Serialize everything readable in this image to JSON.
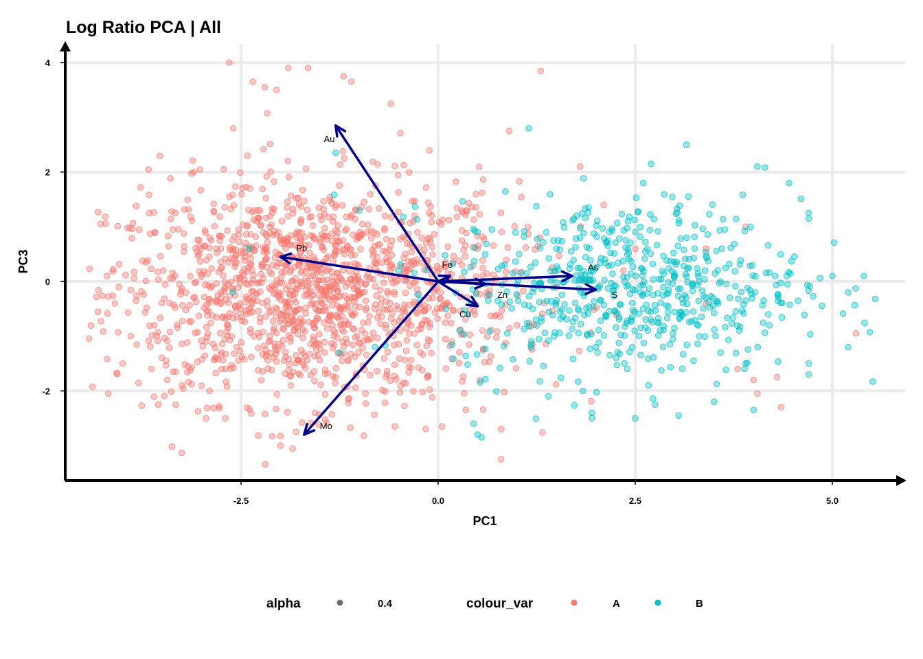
{
  "chart_data": {
    "type": "scatter",
    "title": "Log Ratio PCA | All",
    "xlabel": "PC1",
    "ylabel": "PC3",
    "xlim": [
      -4.45,
      5.85
    ],
    "ylim": [
      -3.6,
      4.3
    ],
    "xticks": [
      -2.5,
      0.0,
      2.5,
      5.0
    ],
    "xtick_labels": [
      "-2.5",
      "0.0",
      "2.5",
      "5.0"
    ],
    "yticks": [
      -2,
      0,
      2,
      4
    ],
    "ytick_labels": [
      "-2",
      "0",
      "2",
      "4"
    ],
    "grid": true,
    "point_alpha": 0.4,
    "series": [
      {
        "name": "A",
        "color": "#F8766D",
        "approx_count": 1500,
        "center": [
          -1.6,
          -0.2
        ],
        "spread": [
          1.3,
          1.0
        ],
        "sample_points": [
          [
            -4.0,
            -1.5
          ],
          [
            -4.2,
            0.1
          ],
          [
            -3.1,
            2.0
          ],
          [
            -2.6,
            2.8
          ],
          [
            -2.65,
            4.0
          ],
          [
            -1.9,
            3.9
          ],
          [
            -1.65,
            3.9
          ],
          [
            -1.2,
            3.75
          ],
          [
            -1.1,
            3.65
          ],
          [
            -0.6,
            3.25
          ],
          [
            -2.35,
            3.65
          ],
          [
            -2.2,
            3.55
          ],
          [
            -2.05,
            3.5
          ],
          [
            1.3,
            3.85
          ],
          [
            0.9,
            2.75
          ],
          [
            -3.55,
            -2.25
          ],
          [
            -2.7,
            -2.5
          ],
          [
            -2.0,
            -3.0
          ],
          [
            -1.8,
            -2.75
          ],
          [
            -0.55,
            -2.65
          ],
          [
            0.05,
            -2.65
          ],
          [
            0.35,
            -2.35
          ],
          [
            0.8,
            -2.7
          ],
          [
            0.8,
            -3.25
          ],
          [
            1.85,
            0.0
          ],
          [
            2.35,
            0.2
          ],
          [
            3.4,
            -0.4
          ],
          [
            4.3,
            -1.75
          ],
          [
            4.05,
            -2.05
          ],
          [
            4.35,
            -2.3
          ],
          [
            5.3,
            -0.95
          ],
          [
            3.8,
            -1.6
          ],
          [
            4.0,
            -1.8
          ],
          [
            3.9,
            1.0
          ],
          [
            3.4,
            0.6
          ],
          [
            1.8,
            2.1
          ],
          [
            2.1,
            1.4
          ],
          [
            1.0,
            -0.8
          ],
          [
            -4.1,
            -0.4
          ],
          [
            -3.9,
            -1.0
          ],
          [
            -3.45,
            -1.45
          ],
          [
            -3.6,
            -0.8
          ],
          [
            -3.25,
            -1.9
          ],
          [
            -2.9,
            -2.0
          ],
          [
            -1.4,
            -0.7
          ],
          [
            -0.9,
            0.9
          ],
          [
            -0.3,
            1.2
          ],
          [
            0.5,
            0.6
          ],
          [
            -2.4,
            -0.5
          ],
          [
            -2.1,
            0.3
          ]
        ]
      },
      {
        "name": "B",
        "color": "#00BFC4",
        "approx_count": 600,
        "center": [
          2.4,
          -0.1
        ],
        "spread": [
          1.1,
          0.8
        ],
        "sample_points": [
          [
            3.15,
            2.5
          ],
          [
            4.05,
            2.1
          ],
          [
            4.45,
            1.8
          ],
          [
            4.7,
            1.25
          ],
          [
            4.7,
            1.15
          ],
          [
            2.7,
            2.15
          ],
          [
            2.6,
            1.8
          ],
          [
            5.0,
            0.1
          ],
          [
            5.4,
            0.1
          ],
          [
            5.2,
            -0.2
          ],
          [
            5.2,
            -1.2
          ],
          [
            4.7,
            -1.5
          ],
          [
            4.7,
            -1.7
          ],
          [
            1.15,
            2.8
          ],
          [
            -1.3,
            2.35
          ],
          [
            3.5,
            -2.2
          ],
          [
            2.75,
            -2.25
          ],
          [
            3.05,
            -2.45
          ],
          [
            2.5,
            -2.5
          ],
          [
            1.95,
            -2.4
          ],
          [
            1.95,
            -2.5
          ],
          [
            0.45,
            -2.6
          ],
          [
            0.5,
            -2.8
          ],
          [
            0.55,
            -2.85
          ],
          [
            1.4,
            -2.1
          ],
          [
            3.9,
            -1.5
          ],
          [
            4.0,
            -2.35
          ],
          [
            1.5,
            0.6
          ],
          [
            1.8,
            0.8
          ],
          [
            2.2,
            0.3
          ],
          [
            2.6,
            -0.5
          ],
          [
            3.0,
            0.1
          ],
          [
            3.3,
            -0.8
          ],
          [
            3.7,
            -0.3
          ],
          [
            4.2,
            -0.8
          ],
          [
            0.5,
            0.9
          ],
          [
            0.1,
            -0.5
          ],
          [
            -0.5,
            0.2
          ],
          [
            -0.8,
            -1.2
          ],
          [
            -1.0,
            1.3
          ],
          [
            -2.4,
            0.6
          ],
          [
            -2.6,
            -0.2
          ],
          [
            1.2,
            -0.5
          ],
          [
            2.0,
            -1.2
          ],
          [
            2.4,
            -1.6
          ],
          [
            3.6,
            0.6
          ]
        ]
      }
    ],
    "loadings": [
      {
        "label": "Au",
        "x": -1.3,
        "y": 2.85,
        "label_x": -1.45,
        "label_y": 2.6
      },
      {
        "label": "Pb",
        "x": -2.0,
        "y": 0.45,
        "label_x": -1.8,
        "label_y": 0.6
      },
      {
        "label": "Fe",
        "x": 0.15,
        "y": 0.1,
        "label_x": 0.05,
        "label_y": 0.3
      },
      {
        "label": "As",
        "x": 1.7,
        "y": 0.1,
        "label_x": 1.9,
        "label_y": 0.25
      },
      {
        "label": "S",
        "x": 2.0,
        "y": -0.15,
        "label_x": 2.2,
        "label_y": -0.25
      },
      {
        "label": "Zn",
        "x": 0.6,
        "y": -0.05,
        "label_x": 0.75,
        "label_y": -0.25
      },
      {
        "label": "Cu",
        "x": 0.5,
        "y": -0.45,
        "label_x": 0.27,
        "label_y": -0.6
      },
      {
        "label": "Mo",
        "x": -1.7,
        "y": -2.8,
        "label_x": -1.5,
        "label_y": -2.65
      }
    ],
    "arrow_color": "#00008B",
    "legend": {
      "position": "bottom",
      "alpha_title": "alpha",
      "alpha_label": "0.4",
      "alpha_swatch_color": "#6E6E6E",
      "colour_title": "colour_var",
      "entries": [
        {
          "label": "A",
          "color": "#F8766D"
        },
        {
          "label": "B",
          "color": "#00BFC4"
        }
      ]
    }
  }
}
